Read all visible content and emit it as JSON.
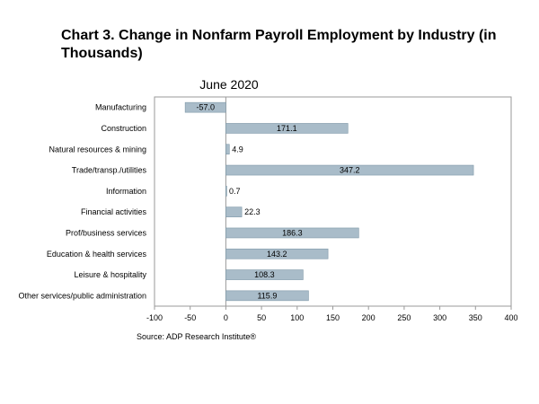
{
  "page": {
    "title": "Chart 3. Change in Nonfarm Payroll Employment by Industry (in Thousands)",
    "source": "Source: ADP Research Institute®"
  },
  "chart_data": {
    "type": "bar",
    "orientation": "horizontal",
    "title": "June 2020",
    "categories": [
      "Manufacturing",
      "Construction",
      "Natural resources & mining",
      "Trade/transp./utilities",
      "Information",
      "Financial activities",
      "Prof/business services",
      "Education & health services",
      "Leisure & hospitality",
      "Other services/public administration"
    ],
    "values": [
      -57.0,
      171.1,
      4.9,
      347.2,
      0.7,
      22.3,
      186.3,
      143.2,
      108.3,
      115.9
    ],
    "value_labels": [
      "-57.0",
      "171.1",
      "4.9",
      "347.2",
      "0.7",
      "22.3",
      "186.3",
      "143.2",
      "108.3",
      "115.9"
    ],
    "xlim": [
      -100,
      400
    ],
    "xticks": [
      -100,
      -50,
      0,
      50,
      100,
      150,
      200,
      250,
      300,
      350,
      400
    ],
    "grid": false,
    "legend": "none",
    "colors": {
      "bar": "#a9bcc9",
      "bar_edge": "#7f98a8",
      "frame": "#9a9a9a"
    }
  }
}
